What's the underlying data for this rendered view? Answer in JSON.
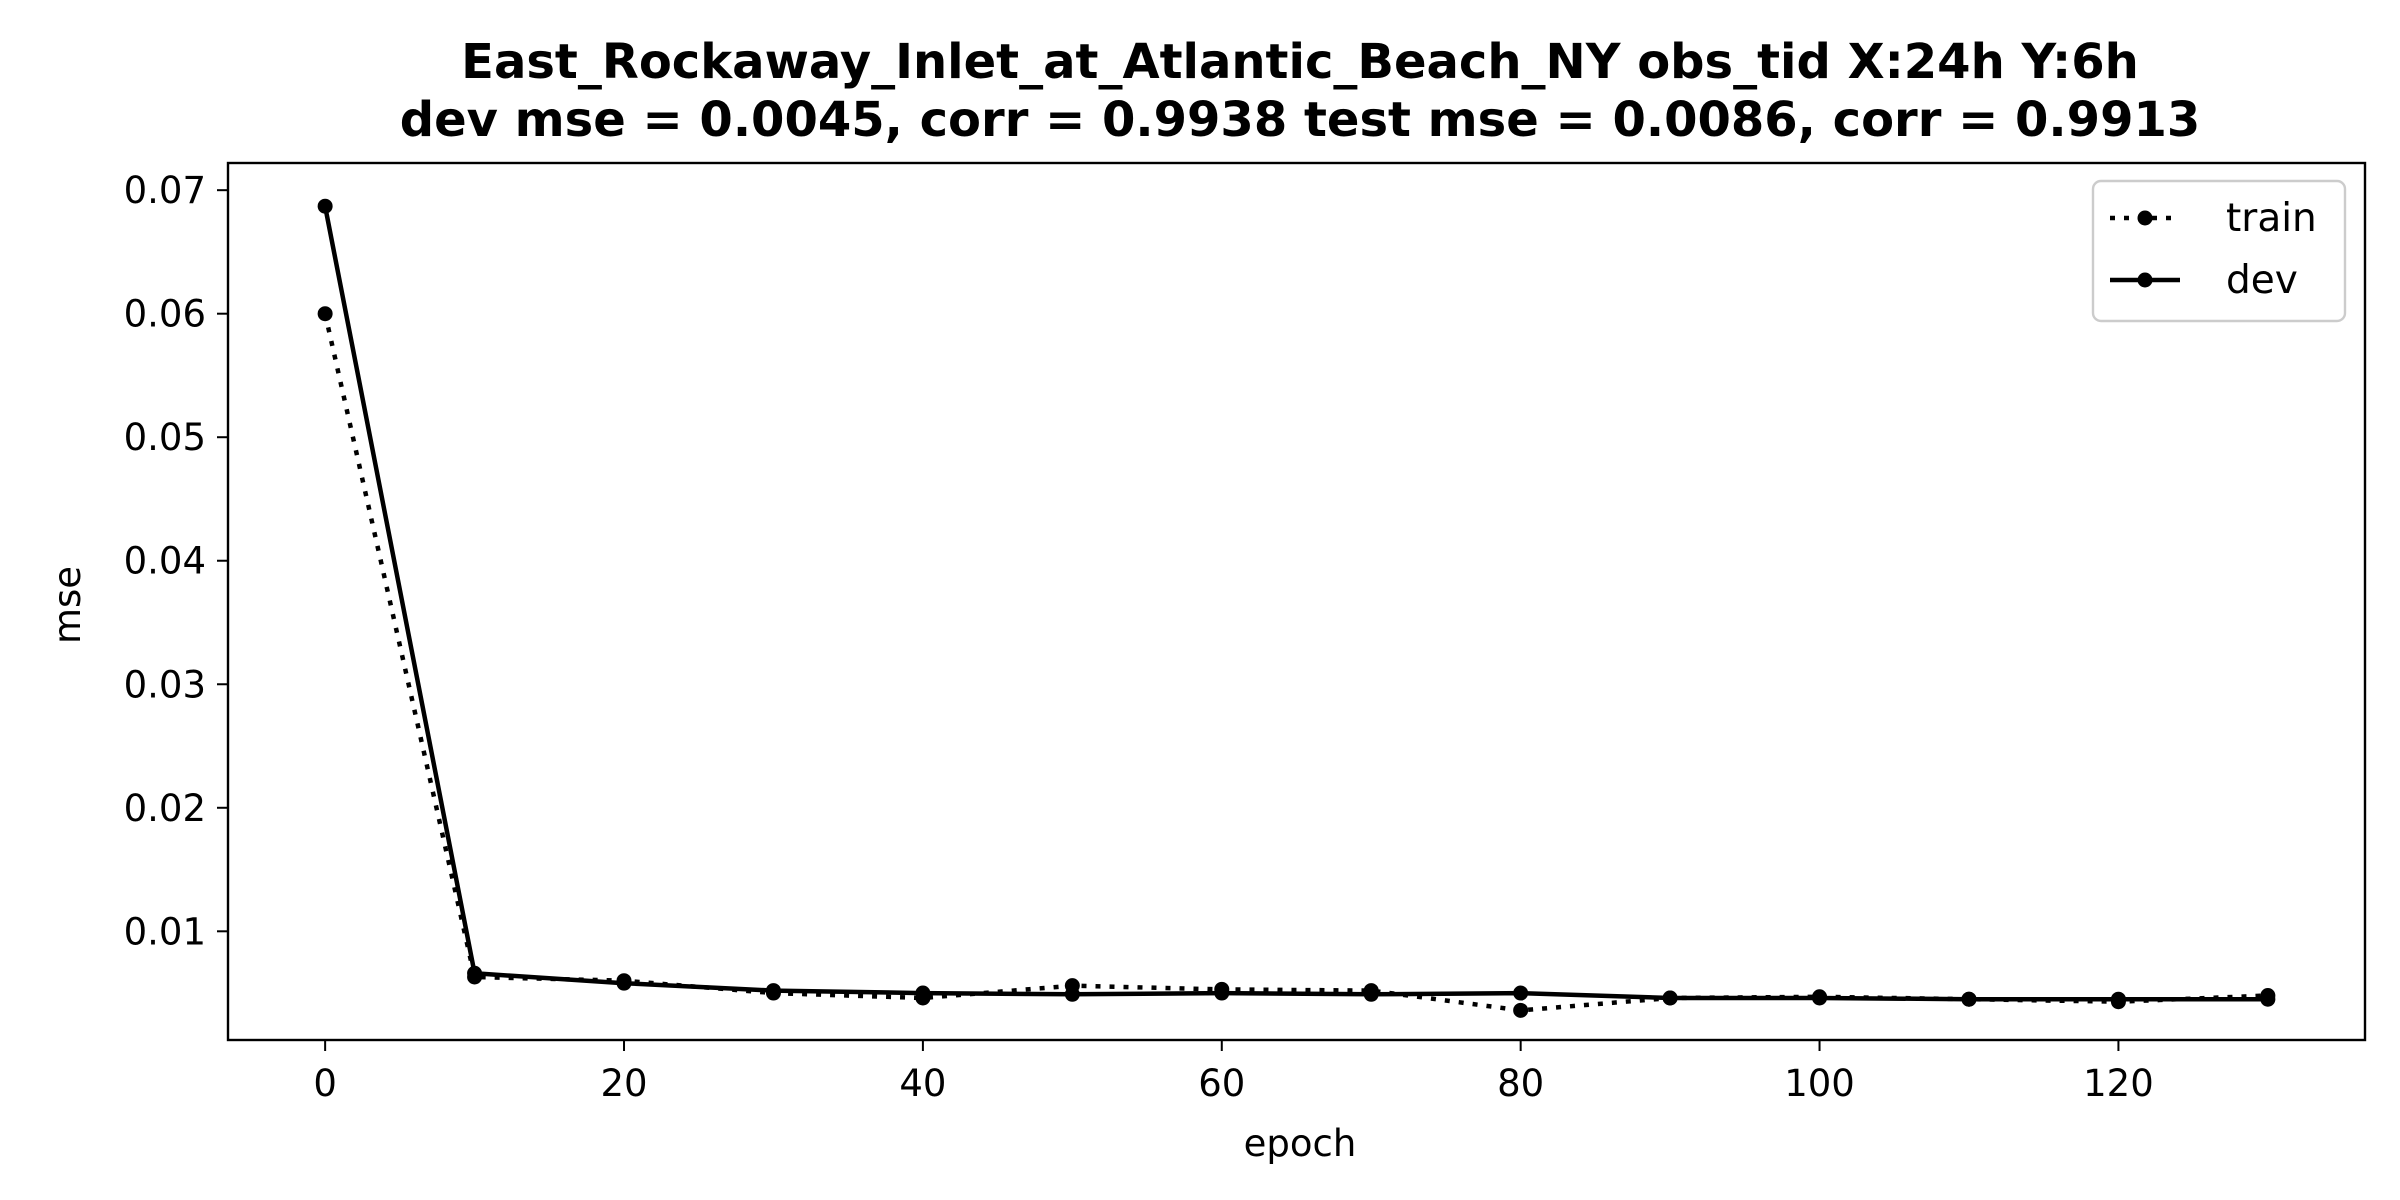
{
  "chart_data": {
    "type": "line",
    "title_line1": "East_Rockaway_Inlet_at_Atlantic_Beach_NY   obs_tid   X:24h   Y:6h",
    "title_line2": "dev mse = 0.0045, corr = 0.9938   test mse = 0.0086, corr = 0.9913",
    "xlabel": "epoch",
    "ylabel": "mse",
    "xlim": [
      -6.5,
      136.5
    ],
    "ylim": [
      0.0012,
      0.0722
    ],
    "xticks": [
      0,
      20,
      40,
      60,
      80,
      100,
      120
    ],
    "xtick_labels": [
      "0",
      "20",
      "40",
      "60",
      "80",
      "100",
      "120"
    ],
    "yticks": [
      0.01,
      0.02,
      0.03,
      0.04,
      0.05,
      0.06,
      0.07
    ],
    "ytick_labels": [
      "0.01",
      "0.02",
      "0.03",
      "0.04",
      "0.05",
      "0.06",
      "0.07"
    ],
    "grid": false,
    "legend_position": "top-right",
    "series": [
      {
        "name": "train",
        "style": "dotted",
        "marker": "circle",
        "color": "#000000",
        "x": [
          0,
          10,
          20,
          30,
          40,
          50,
          60,
          70,
          80,
          90,
          100,
          110,
          120,
          130
        ],
        "y": [
          0.06,
          0.0063,
          0.006,
          0.005,
          0.0046,
          0.0056,
          0.0053,
          0.0052,
          0.0036,
          0.0046,
          0.0047,
          0.0045,
          0.0043,
          0.0048
        ]
      },
      {
        "name": "dev",
        "style": "solid",
        "marker": "circle",
        "color": "#000000",
        "x": [
          0,
          10,
          20,
          30,
          40,
          50,
          60,
          70,
          80,
          90,
          100,
          110,
          120,
          130
        ],
        "y": [
          0.0687,
          0.0066,
          0.0058,
          0.0052,
          0.005,
          0.0049,
          0.005,
          0.0049,
          0.005,
          0.0046,
          0.0046,
          0.0045,
          0.0045,
          0.0045
        ]
      }
    ]
  }
}
